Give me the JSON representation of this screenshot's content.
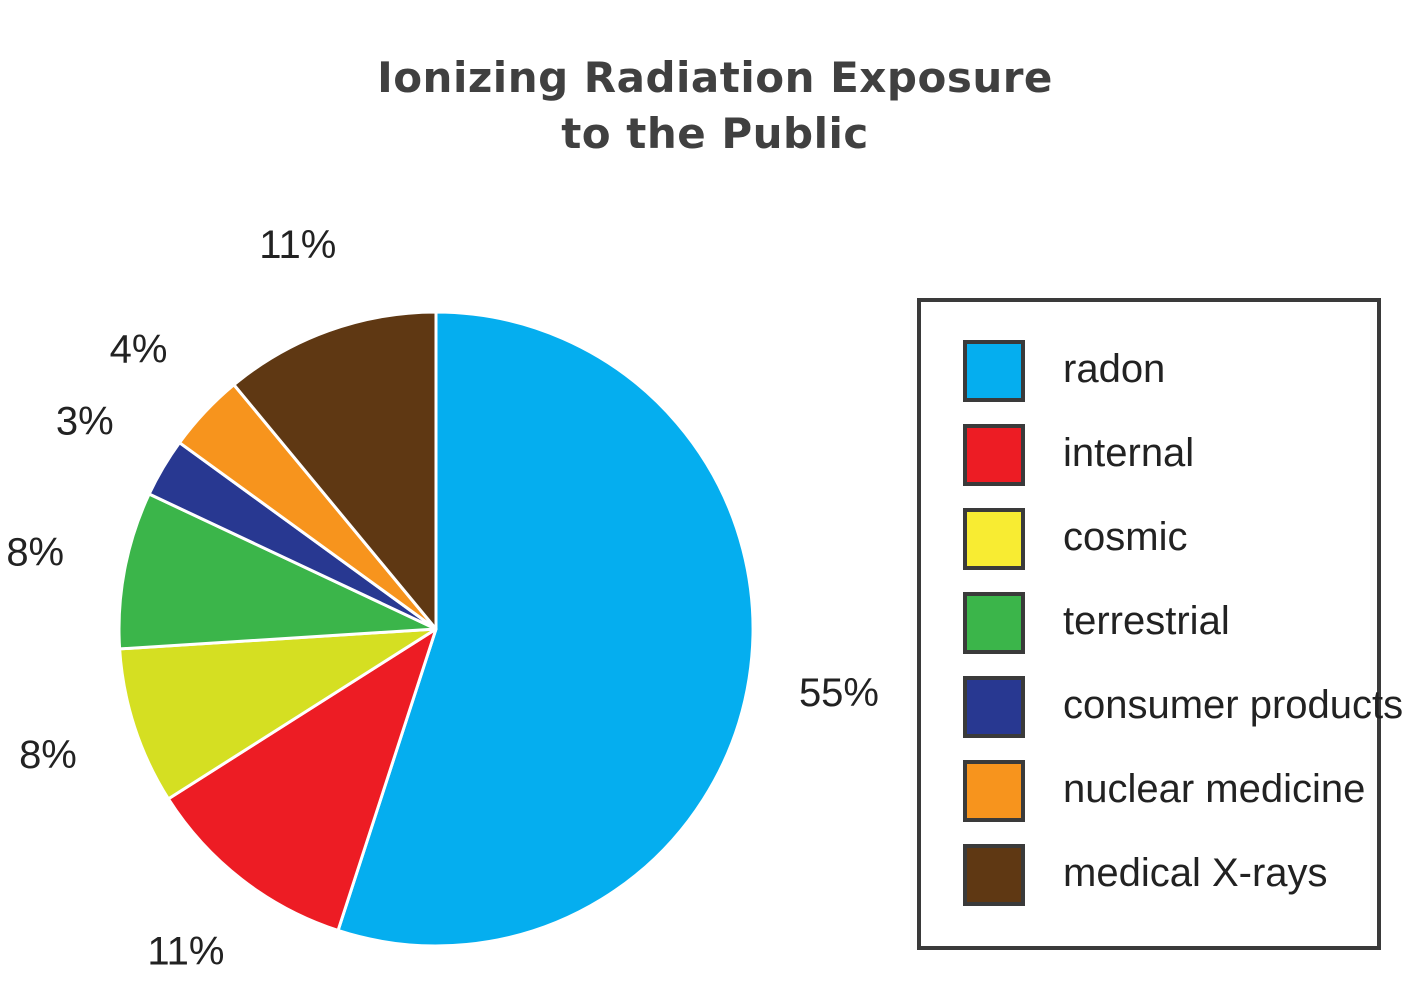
{
  "chart_data": {
    "type": "pie",
    "title": [
      "Ionizing Radiation Exposure",
      "to the Public"
    ],
    "categories": [
      "radon",
      "internal",
      "cosmic",
      "terrestrial",
      "consumer products",
      "nuclear medicine",
      "medical X-rays"
    ],
    "values": [
      55,
      11,
      8,
      8,
      3,
      4,
      11
    ],
    "value_labels": [
      "55%",
      "11%",
      "8%",
      "8%",
      "3%",
      "4%",
      "11%"
    ],
    "colors": [
      "#05aeef",
      "#ed1c24",
      "#d5df22",
      "#3bb54a",
      "#283891",
      "#f7941d",
      "#5f3813"
    ],
    "legend_colors": [
      "#05aeef",
      "#ed1c24",
      "#f8ec32",
      "#3bb54a",
      "#283891",
      "#f7941d",
      "#5f3813"
    ],
    "legend_position": "right",
    "start_angle": "top",
    "direction": "clockwise"
  }
}
